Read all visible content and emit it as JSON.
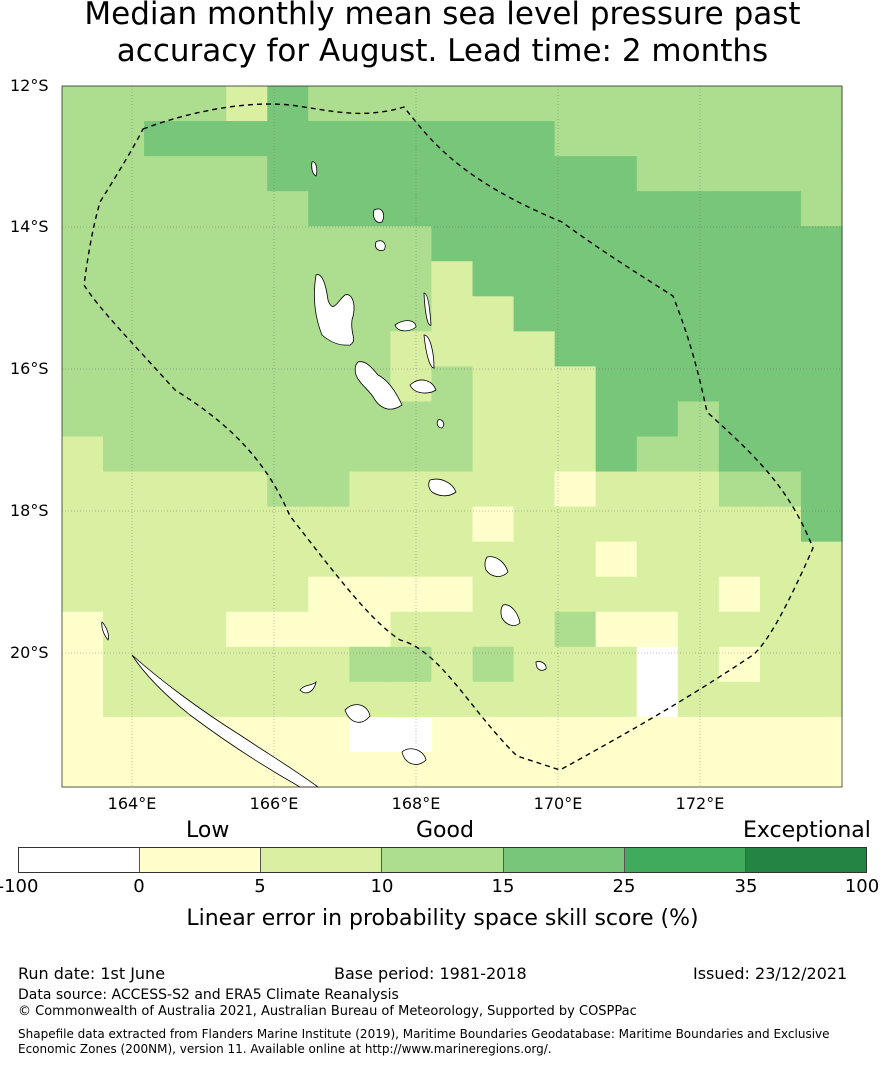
{
  "title_line1": "Median monthly mean sea level pressure past",
  "title_line2": "accuracy for August. Lead time: 2 months",
  "map": {
    "lat_labels": [
      "12°S",
      "14°S",
      "16°S",
      "18°S",
      "20°S"
    ],
    "lon_labels": [
      "164°E",
      "166°E",
      "168°E",
      "170°E",
      "172°E"
    ],
    "palette": [
      "#ffffff",
      "#ffffcc",
      "#d9f0a3",
      "#addd8e",
      "#78c679",
      "#41ab5d",
      "#238443"
    ],
    "grid_rows_class": [
      "3333243333333333333",
      "3344444444443333333",
      "3333344444444433333",
      "3333334444444444443",
      "3333333334444444444",
      "3333333332444444444",
      "3333333332244444444",
      "3333333322224444444",
      "3333333323222444444",
      "3333333333222443444",
      "2333333333222433444",
      "2222233222221222334",
      "2222222222122222224",
      "2222222222222122222",
      "2222221111222222122",
      "1222111122223112222",
      "1222222332322222122",
      "1222222222222222222",
      "1111111111111111111",
      "1111111111111111111"
    ],
    "white_cells_note": ""
  },
  "categories": {
    "low": "Low",
    "good": "Good",
    "exceptional": "Exceptional"
  },
  "colorbar": {
    "ticks": [
      "-100",
      "0",
      "5",
      "10",
      "15",
      "25",
      "35",
      "100"
    ],
    "title": "Linear error in probability space skill score (%)"
  },
  "footer": {
    "run_date": "Run date: 1st June",
    "base_period": "Base period: 1981-2018",
    "issued": "Issued: 23/12/2021",
    "data_source": "Data source: ACCESS-S2 and ERA5 Climate Reanalysis",
    "copyright": "© Commonwealth of Australia 2021, Australian Bureau of Meteorology, Supported by COSPPac",
    "shapefile_line1": "Shapefile data extracted from Flanders Marine Institute (2019), Maritime Boundaries Geodatabase: Maritime Boundaries and Exclusive",
    "shapefile_line2": "Economic Zones (200NM), version 11. Available online at http://www.marineregions.org/."
  }
}
